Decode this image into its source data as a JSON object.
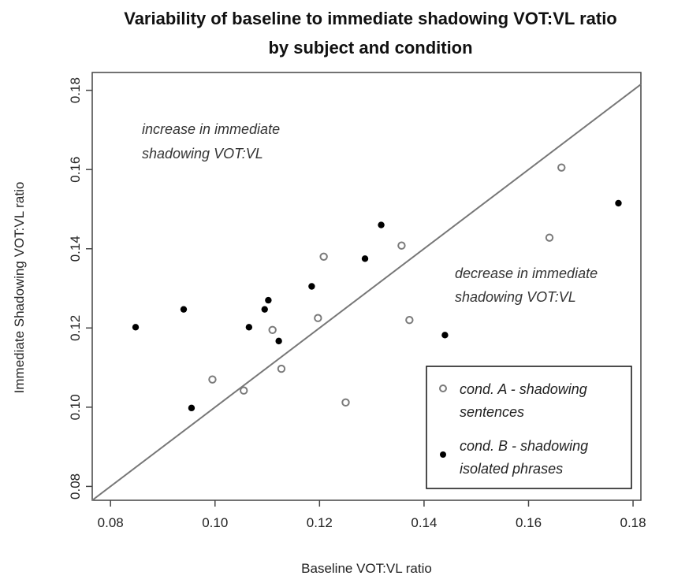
{
  "chart_data": {
    "type": "scatter",
    "title": [
      "Variability of baseline to immediate shadowing VOT:VL ratio",
      "by subject and condition"
    ],
    "xlabel": "Baseline VOT:VL ratio",
    "ylabel": "Immediate Shadowing VOT:VL ratio",
    "xlim": [
      0.0765,
      0.1815
    ],
    "ylim": [
      0.0765,
      0.1845
    ],
    "xticks": [
      "0.08",
      "0.10",
      "0.12",
      "0.14",
      "0.16",
      "0.18"
    ],
    "yticks": [
      "0.08",
      "0.10",
      "0.12",
      "0.14",
      "0.16",
      "0.18"
    ],
    "reference_line": "y = x",
    "grid": false,
    "legend_position": "bottom-right",
    "annotations": [
      [
        "increase in immediate",
        "shadowing VOT:VL"
      ],
      [
        "decrease in immediate",
        "shadowing VOT:VL"
      ]
    ],
    "series": [
      {
        "name": [
          "cond. A - shadowing",
          "sentences"
        ],
        "marker": "open-circle",
        "color": "#7a7a7a",
        "points": [
          [
            0.0995,
            0.107
          ],
          [
            0.1055,
            0.1042
          ],
          [
            0.111,
            0.1195
          ],
          [
            0.1127,
            0.1097
          ],
          [
            0.1197,
            0.1225
          ],
          [
            0.1208,
            0.138
          ],
          [
            0.125,
            0.1012
          ],
          [
            0.1357,
            0.1408
          ],
          [
            0.1372,
            0.122
          ],
          [
            0.164,
            0.1428
          ],
          [
            0.1663,
            0.1605
          ]
        ]
      },
      {
        "name": [
          "cond. B - shadowing",
          "isolated phrases"
        ],
        "marker": "filled-circle",
        "color": "#000000",
        "points": [
          [
            0.0848,
            0.1202
          ],
          [
            0.094,
            0.1247
          ],
          [
            0.0955,
            0.0998
          ],
          [
            0.1065,
            0.1202
          ],
          [
            0.1095,
            0.1247
          ],
          [
            0.1102,
            0.127
          ],
          [
            0.1122,
            0.1167
          ],
          [
            0.1185,
            0.1305
          ],
          [
            0.1287,
            0.1375
          ],
          [
            0.1318,
            0.146
          ],
          [
            0.144,
            0.1182
          ],
          [
            0.1772,
            0.1515
          ]
        ]
      }
    ]
  }
}
